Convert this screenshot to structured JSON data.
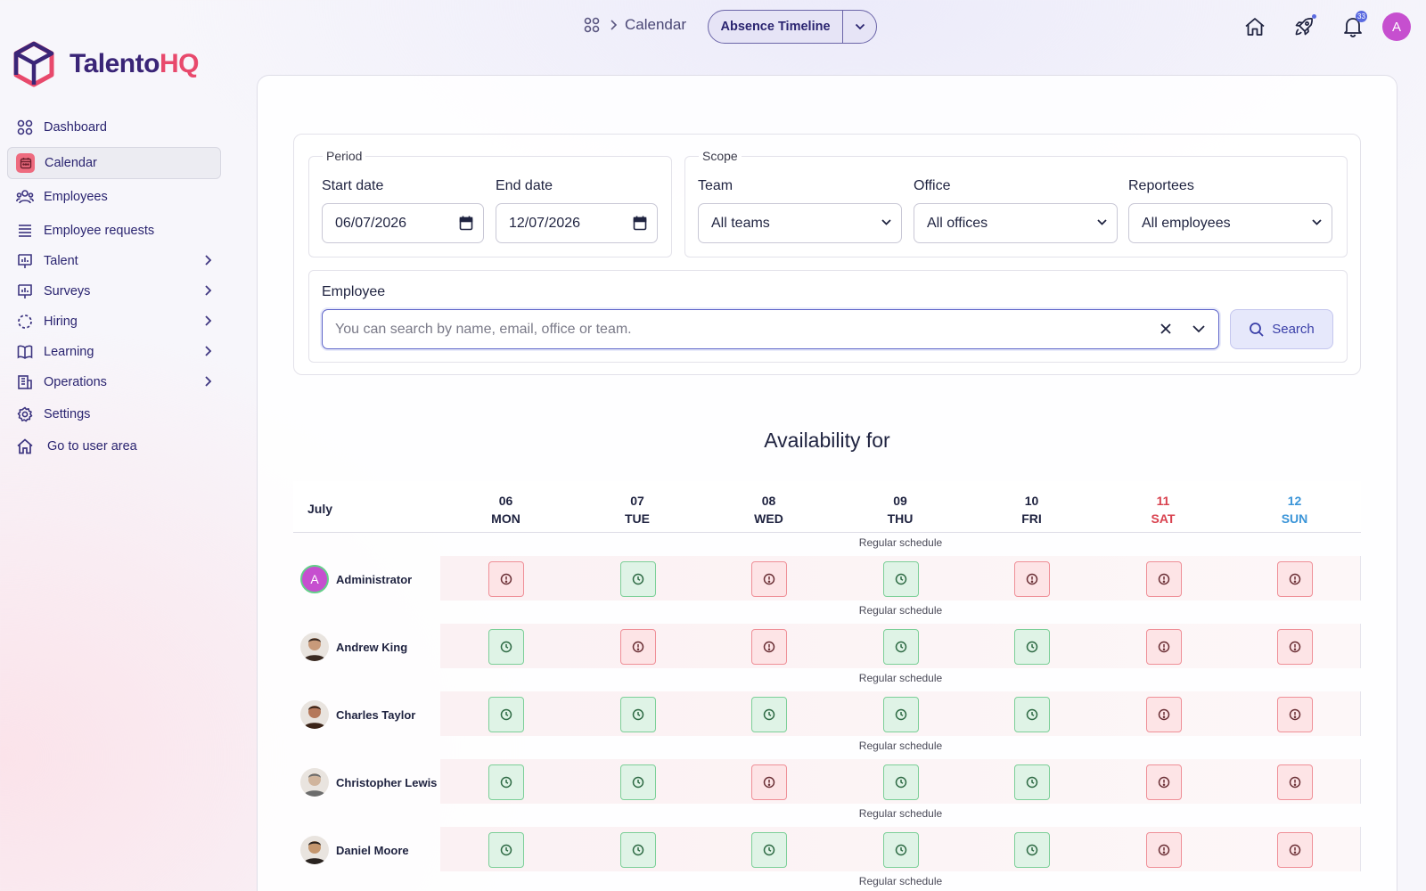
{
  "app": {
    "logo_part1": "Talento",
    "logo_part2": "HQ",
    "brand_color": "#3a2577",
    "accent_color": "#e8496c"
  },
  "sidebar": {
    "items": [
      {
        "label": "Dashboard",
        "icon": "dashboard-grid-icon",
        "expandable": false,
        "active": false
      },
      {
        "label": "Calendar",
        "icon": "calendar-icon",
        "expandable": false,
        "active": true
      },
      {
        "label": "Employees",
        "icon": "users-icon",
        "expandable": false,
        "active": false
      },
      {
        "label": "Employee requests",
        "icon": "list-icon",
        "expandable": false,
        "active": false
      },
      {
        "label": "Talent",
        "icon": "presentation-chart-icon",
        "expandable": true,
        "active": false
      },
      {
        "label": "Surveys",
        "icon": "presentation-chart-icon",
        "expandable": true,
        "active": false
      },
      {
        "label": "Hiring",
        "icon": "dashed-circle-icon",
        "expandable": true,
        "active": false
      },
      {
        "label": "Learning",
        "icon": "book-icon",
        "expandable": true,
        "active": false
      },
      {
        "label": "Operations",
        "icon": "building-icon",
        "expandable": true,
        "active": false
      },
      {
        "label": "Settings",
        "icon": "gear-icon",
        "expandable": false,
        "active": false
      },
      {
        "label": "Go to user area",
        "icon": "home-icon",
        "expandable": false,
        "active": false
      }
    ]
  },
  "header": {
    "breadcrumb": "Calendar",
    "view_button": "Absence Timeline",
    "notification_count": "33",
    "user_initial": "A"
  },
  "filters": {
    "period_legend": "Period",
    "start_label": "Start date",
    "start_value": "06/07/2026",
    "end_label": "End date",
    "end_value": "12/07/2026",
    "scope_legend": "Scope",
    "team_label": "Team",
    "team_value": "All teams",
    "office_label": "Office",
    "office_value": "All offices",
    "reportees_label": "Reportees",
    "reportees_value": "All employees",
    "employee_label": "Employee",
    "employee_placeholder": "You can search by name, email, office or team.",
    "search_label": "Search"
  },
  "availability": {
    "title": "Availability for",
    "month": "July",
    "days": [
      {
        "num": "06",
        "name": "MON",
        "kind": "weekday"
      },
      {
        "num": "07",
        "name": "TUE",
        "kind": "weekday"
      },
      {
        "num": "08",
        "name": "WED",
        "kind": "weekday"
      },
      {
        "num": "09",
        "name": "THU",
        "kind": "weekday"
      },
      {
        "num": "10",
        "name": "FRI",
        "kind": "weekday"
      },
      {
        "num": "11",
        "name": "SAT",
        "kind": "sat"
      },
      {
        "num": "12",
        "name": "SUN",
        "kind": "sun"
      }
    ],
    "row_note": "Regular schedule",
    "rows": [
      {
        "name": "Administrator",
        "avatar": "initial",
        "initial": "A",
        "status": [
          "off",
          "work",
          "off",
          "work",
          "off",
          "off",
          "off"
        ]
      },
      {
        "name": "Andrew King",
        "avatar": "photo",
        "status": [
          "work",
          "off",
          "off",
          "work",
          "work",
          "off",
          "off"
        ]
      },
      {
        "name": "Charles Taylor",
        "avatar": "photo",
        "status": [
          "work",
          "work",
          "work",
          "work",
          "work",
          "off",
          "off"
        ]
      },
      {
        "name": "Christopher Lewis",
        "avatar": "photo",
        "status": [
          "work",
          "work",
          "off",
          "work",
          "work",
          "off",
          "off"
        ]
      },
      {
        "name": "Daniel Moore",
        "avatar": "photo",
        "status": [
          "work",
          "work",
          "work",
          "work",
          "work",
          "off",
          "off"
        ]
      }
    ],
    "colors": {
      "work_bg": "#dff3e6",
      "work_border": "#7ccf98",
      "off_bg": "#fde4e6",
      "off_border": "#ef8f97",
      "sat": "#d9424f",
      "sun": "#3b95d8"
    }
  }
}
